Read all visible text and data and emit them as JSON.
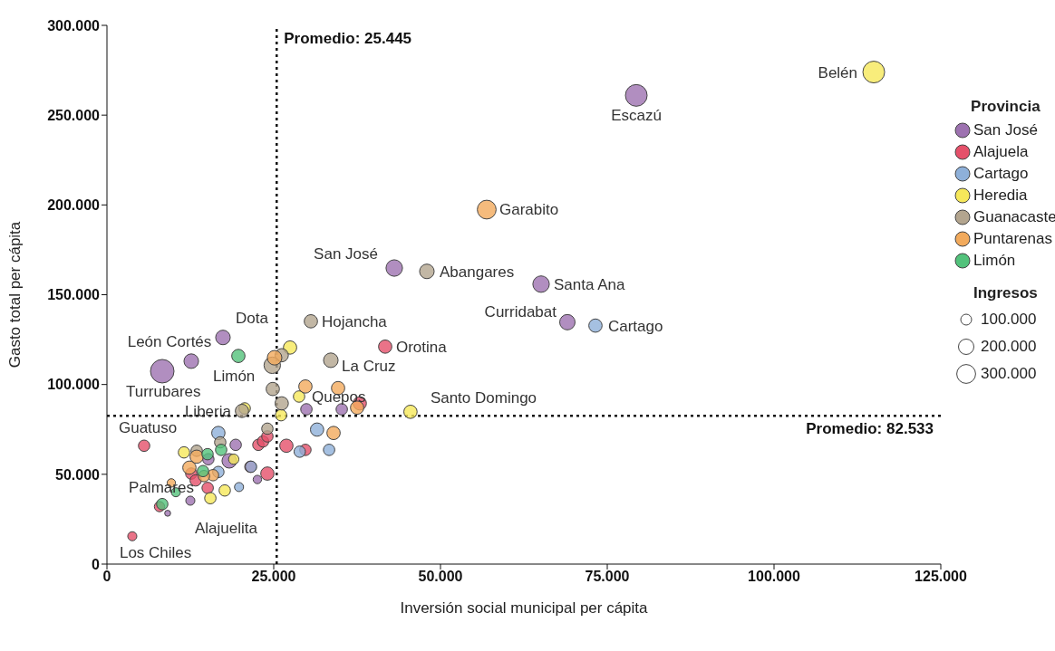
{
  "chart_data": {
    "type": "bubble",
    "xlabel": "Inversión social municipal per cápita",
    "ylabel": "Gasto total per cápita",
    "legend_title": "Provincia",
    "legend": "right",
    "marker": "circle",
    "xlim": [
      0,
      125000
    ],
    "ylim": [
      0,
      300000
    ],
    "xticks": [
      0,
      {
        "value": 25000,
        "label": "25.000"
      },
      {
        "value": 50000,
        "label": "50.000"
      },
      {
        "value": 75000,
        "label": "75.000"
      },
      {
        "value": 100000,
        "label": "100.000"
      },
      {
        "value": 125000,
        "label": "125.000"
      }
    ],
    "yticks": [
      0,
      {
        "value": 50000,
        "label": "50.000"
      },
      {
        "value": 100000,
        "label": "100.000"
      },
      {
        "value": 150000,
        "label": "150.000"
      },
      {
        "value": 200000,
        "label": "200.000"
      },
      {
        "value": 250000,
        "label": "250.000"
      },
      {
        "value": 300000,
        "label": "300.000"
      }
    ],
    "size_legend": [
      {
        "value": 100000,
        "label": "100.000"
      },
      {
        "value": 200000,
        "label": "200.000"
      },
      {
        "value": 300000,
        "label": "300.000"
      }
    ],
    "series": [
      {
        "name": "San José",
        "color": "#9d72b0",
        "x": [
          79350,
          43070,
          65080,
          69020,
          17390,
          12640,
          8290,
          9100,
          19300,
          15200,
          18340,
          22550,
          12500,
          29900,
          35200
        ],
        "values": [
          261000,
          164860,
          155900,
          134700,
          126200,
          113000,
          107400,
          28300,
          66400,
          58400,
          57500,
          47100,
          35300,
          86200,
          86200
        ],
        "sizes": [
          400000,
          230000,
          230000,
          200000,
          180000,
          180000,
          470000,
          30000,
          110000,
          110000,
          180000,
          60000,
          70000,
          110000,
          110000
        ]
      },
      {
        "name": "Alajuela",
        "color": "#e5506a",
        "x": [
          41710,
          3800,
          5570,
          7880,
          37900,
          26900,
          29750,
          24050,
          22700,
          23400,
          24050,
          21500,
          12640,
          13300,
          15100
        ],
        "values": [
          121100,
          15500,
          65900,
          32000,
          89500,
          65900,
          63600,
          50400,
          66400,
          68300,
          71100,
          54200,
          50400,
          46600,
          42400
        ],
        "sizes": [
          150000,
          70000,
          110000,
          90000,
          150000,
          150000,
          110000,
          150000,
          110000,
          110000,
          110000,
          110000,
          110000,
          110000,
          110000
        ]
      },
      {
        "name": "Cartago",
        "color": "#8eb0d9",
        "x": [
          73230,
          16700,
          31500,
          28900,
          33300,
          16700,
          19800,
          21600
        ],
        "values": [
          132800,
          73000,
          74900,
          62600,
          63600,
          51300,
          42900,
          54200
        ],
        "sizes": [
          150000,
          150000,
          150000,
          110000,
          110000,
          110000,
          70000,
          110000
        ]
      },
      {
        "name": "Heredia",
        "color": "#f6e85a",
        "x": [
          114950,
          45500,
          27450,
          26100,
          28800,
          20650,
          19000,
          17660,
          15500,
          11550
        ],
        "values": [
          274000,
          84800,
          120600,
          82900,
          93300,
          86700,
          58400,
          41000,
          36700,
          62200
        ],
        "sizes": [
          400000,
          150000,
          150000,
          110000,
          110000,
          110000,
          90000,
          110000,
          110000,
          110000
        ]
      },
      {
        "name": "Guanacaste",
        "color": "#b3a58f",
        "x": [
          30570,
          33560,
          47960,
          20240,
          26200,
          24780,
          24860,
          26200,
          24050,
          16980,
          13450
        ],
        "values": [
          135200,
          113500,
          163000,
          85300,
          116300,
          110700,
          97500,
          89500,
          75400,
          67800,
          63100
        ],
        "sizes": [
          150000,
          180000,
          180000,
          150000,
          150000,
          230000,
          150000,
          150000,
          110000,
          110000,
          110000
        ]
      },
      {
        "name": "Puntarenas",
        "color": "#f2aa5c",
        "x": [
          56930,
          25130,
          29750,
          34650,
          37500,
          33970,
          13450,
          12360,
          15900,
          14540,
          9650
        ],
        "values": [
          197400,
          114900,
          98900,
          98000,
          87100,
          73000,
          59800,
          53700,
          49500,
          49000,
          45200
        ],
        "sizes": [
          300000,
          180000,
          150000,
          150000,
          150000,
          150000,
          150000,
          150000,
          110000,
          110000,
          60000
        ]
      },
      {
        "name": "Limón",
        "color": "#52c27b",
        "x": [
          19700,
          15080,
          17120,
          14400,
          10330,
          8290
        ],
        "values": [
          115900,
          61200,
          63600,
          51800,
          40000,
          33400
        ],
        "sizes": [
          150000,
          110000,
          110000,
          110000,
          70000,
          110000
        ]
      }
    ],
    "ref_lines": [
      {
        "axis": "x",
        "value": 25445,
        "label": "Promedio: 25.445",
        "line_style": "dotted",
        "color": "#111111"
      },
      {
        "axis": "y",
        "value": 82533,
        "label": "Promedio: 82.533",
        "line_style": "dotted",
        "color": "#111111"
      }
    ],
    "annotations": [
      "Ingresos",
      {
        "text": "Escazú",
        "x": 79350,
        "y": 261000
      },
      {
        "text": "Belén",
        "x": 114950,
        "y": 274000
      },
      {
        "text": "Garabito",
        "x": 56930,
        "y": 197400
      },
      {
        "text": "San José",
        "x": 43070,
        "y": 164860
      },
      {
        "text": "Abangares",
        "x": 47960,
        "y": 163000
      },
      {
        "text": "Santa Ana",
        "x": 65080,
        "y": 155900
      },
      {
        "text": "Curridabat",
        "x": 69020,
        "y": 134700
      },
      {
        "text": "Cartago",
        "x": 73230,
        "y": 132800
      },
      {
        "text": "Dota",
        "x": 17390,
        "y": 126200
      },
      {
        "text": "León Cortés",
        "x": 12640,
        "y": 113000
      },
      {
        "text": "Turrubares",
        "x": 8290,
        "y": 107400
      },
      {
        "text": "Limón",
        "x": 19700,
        "y": 115900
      },
      {
        "text": "Hojancha",
        "x": 30570,
        "y": 135200
      },
      {
        "text": "La Cruz",
        "x": 33560,
        "y": 113500
      },
      {
        "text": "Orotina",
        "x": 41710,
        "y": 121100
      },
      {
        "text": "Quepos",
        "x": 28800,
        "y": 93300
      },
      {
        "text": "Santo Domingo",
        "x": 45500,
        "y": 84800
      },
      {
        "text": "Liberia",
        "x": 20240,
        "y": 85300
      },
      {
        "text": "Guatuso",
        "x": 5570,
        "y": 65900
      },
      {
        "text": "Palmares",
        "x": 7880,
        "y": 32000
      },
      {
        "text": "Alajuelita",
        "x": 9100,
        "y": 28300
      },
      {
        "text": "Los Chiles",
        "x": 3800,
        "y": 15500
      }
    ]
  }
}
